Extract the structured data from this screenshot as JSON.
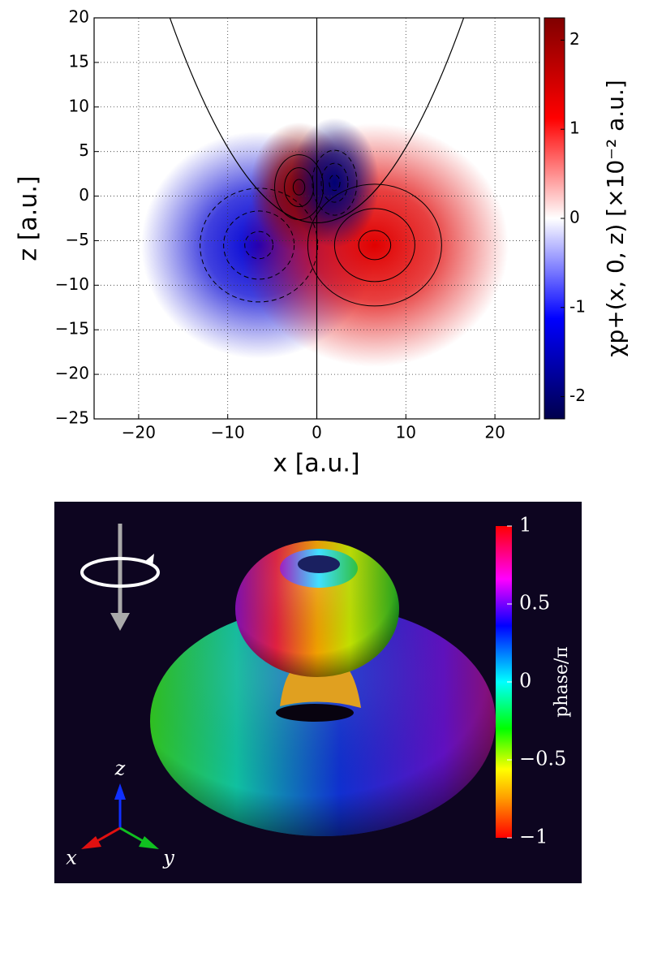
{
  "chart_data": [
    {
      "type": "heatmap",
      "xlabel": "x [a.u.]",
      "ylabel": "z [a.u.]",
      "colorbar_label": "χp+(x, 0, z) [×10⁻² a.u.]",
      "xlim": [
        -25,
        25
      ],
      "ylim": [
        -25,
        20
      ],
      "xticks": [
        {
          "value": -20,
          "label": "−20"
        },
        {
          "value": -10,
          "label": "−10"
        },
        0,
        10,
        20
      ],
      "yticks": [
        20,
        15,
        10,
        5,
        0,
        {
          "value": -5,
          "label": "−5"
        },
        {
          "value": -10,
          "label": "−10"
        },
        {
          "value": -15,
          "label": "−15"
        },
        {
          "value": -20,
          "label": "−20"
        },
        {
          "value": -25,
          "label": "−25"
        }
      ],
      "grid": true,
      "clim": [
        -2.25,
        2.25
      ],
      "cticks": [
        -2,
        -1,
        0,
        1,
        2
      ],
      "lobes": [
        {
          "x": -6.5,
          "z": -5.5,
          "value": -1.4
        },
        {
          "x": 6.5,
          "z": -5.5,
          "value": 1.4
        },
        {
          "x": -2,
          "z": 1,
          "value": 2.2
        },
        {
          "x": 2,
          "z": 1.5,
          "value": -2
        }
      ]
    },
    {
      "type": "surface",
      "colorbar_label": "phase/π",
      "clim": [
        -1,
        1
      ],
      "cticks": [
        1,
        0.5,
        0,
        {
          "value": -0.5,
          "label": "−0.5"
        },
        {
          "value": -1,
          "label": "−1"
        }
      ],
      "axis_labels": [
        "x",
        "y",
        "z"
      ]
    }
  ]
}
